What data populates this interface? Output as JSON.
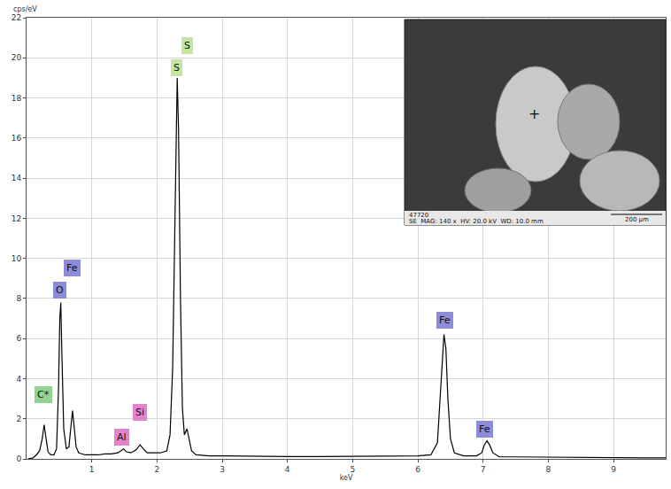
{
  "chart_data": {
    "type": "line",
    "y_label": "cps/eV",
    "x_label": "keV",
    "x": [
      0.02,
      0.1,
      0.15,
      0.2,
      0.24,
      0.27,
      0.3,
      0.33,
      0.37,
      0.42,
      0.46,
      0.49,
      0.51,
      0.525,
      0.54,
      0.57,
      0.61,
      0.65,
      0.68,
      0.705,
      0.73,
      0.76,
      0.8,
      0.9,
      1.0,
      1.1,
      1.2,
      1.3,
      1.4,
      1.46,
      1.49,
      1.53,
      1.6,
      1.68,
      1.74,
      1.79,
      1.85,
      1.95,
      2.05,
      2.15,
      2.2,
      2.24,
      2.27,
      2.3,
      2.31,
      2.33,
      2.36,
      2.39,
      2.42,
      2.46,
      2.49,
      2.53,
      2.6,
      2.8,
      3.0,
      3.5,
      4.0,
      4.5,
      5.0,
      5.5,
      6.0,
      6.2,
      6.3,
      6.35,
      6.38,
      6.4,
      6.43,
      6.46,
      6.5,
      6.56,
      6.7,
      6.9,
      6.98,
      7.02,
      7.06,
      7.1,
      7.15,
      7.25,
      7.5,
      8.0,
      8.5,
      9.0,
      9.5,
      9.8
    ],
    "values": [
      0.0,
      0.05,
      0.2,
      0.4,
      1.0,
      1.7,
      1.0,
      0.35,
      0.2,
      0.2,
      0.5,
      3.5,
      7.0,
      7.8,
      5.5,
      1.5,
      0.5,
      0.6,
      1.6,
      2.4,
      1.6,
      0.6,
      0.3,
      0.2,
      0.2,
      0.2,
      0.25,
      0.25,
      0.3,
      0.45,
      0.5,
      0.35,
      0.3,
      0.45,
      0.7,
      0.5,
      0.3,
      0.3,
      0.3,
      0.4,
      1.2,
      4.5,
      11.0,
      18.0,
      19.0,
      16.5,
      8.0,
      2.5,
      1.2,
      1.5,
      1.0,
      0.4,
      0.2,
      0.15,
      0.15,
      0.12,
      0.12,
      0.12,
      0.12,
      0.12,
      0.15,
      0.2,
      0.8,
      3.5,
      5.5,
      6.2,
      5.5,
      3.0,
      1.0,
      0.3,
      0.15,
      0.15,
      0.3,
      0.7,
      0.9,
      0.7,
      0.3,
      0.1,
      0.1,
      0.08,
      0.07,
      0.06,
      0.05,
      0.05
    ],
    "color": "#000000",
    "xlim": [
      0,
      9.8
    ],
    "xticks": [
      1,
      2,
      3,
      4,
      5,
      6,
      7,
      8,
      9
    ],
    "ylim": [
      0,
      22
    ],
    "yticks": [
      0,
      2,
      4,
      6,
      8,
      10,
      12,
      14,
      16,
      18,
      20,
      22
    ],
    "grid": true,
    "annotations": [
      {
        "text": "C*",
        "x": 0.26,
        "y": 3.2,
        "color": "#92d392"
      },
      {
        "text": "O",
        "x": 0.51,
        "y": 8.4,
        "color": "#8c8cd8"
      },
      {
        "text": "Fe",
        "x": 0.7,
        "y": 9.5,
        "color": "#8c8cd8"
      },
      {
        "text": "Al",
        "x": 1.46,
        "y": 1.1,
        "color": "#e383cf"
      },
      {
        "text": "Si",
        "x": 1.74,
        "y": 2.3,
        "color": "#e383cf"
      },
      {
        "text": "S",
        "x": 2.3,
        "y": 19.5,
        "color": "#c4e6a0"
      },
      {
        "text": "S",
        "x": 2.47,
        "y": 20.6,
        "color": "#c4e6a0"
      },
      {
        "text": "Fe",
        "x": 6.42,
        "y": 6.9,
        "color": "#8c8cd8"
      },
      {
        "text": "Fe",
        "x": 7.03,
        "y": 1.5,
        "color": "#8c8cd8"
      }
    ],
    "inset_texts": [
      "47720",
      "SE  MAG: 140 x  HV: 20.0 kV  WD: 10.0 mm",
      "200 µm",
      "+"
    ]
  }
}
